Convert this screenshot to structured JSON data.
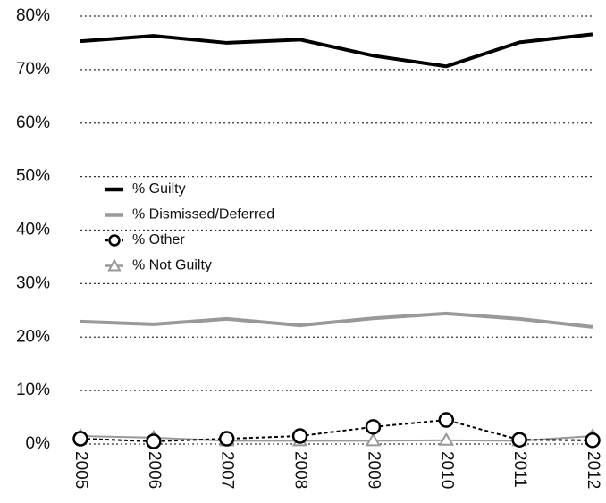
{
  "chart_data": {
    "type": "line",
    "categories": [
      "2005",
      "2006",
      "2007",
      "2008",
      "2009",
      "2010",
      "2011",
      "2012"
    ],
    "series": [
      {
        "name": "% Guilty",
        "color": "#000000",
        "linewidth": 4,
        "linestyle": "solid",
        "marker": "none",
        "values": [
          75.3,
          76.3,
          75.0,
          75.6,
          72.6,
          70.6,
          75.1,
          76.6
        ]
      },
      {
        "name": "% Dismissed/Deferred",
        "color": "#999999",
        "linewidth": 4,
        "linestyle": "solid",
        "marker": "none",
        "values": [
          22.9,
          22.4,
          23.4,
          22.2,
          23.5,
          24.4,
          23.4,
          21.9
        ]
      },
      {
        "name": "% Other",
        "color": "#000000",
        "linewidth": 2,
        "linestyle": "dashed",
        "marker": "circle",
        "values": [
          1.0,
          0.5,
          1.0,
          1.5,
          3.2,
          4.5,
          0.8,
          0.7
        ]
      },
      {
        "name": "% Not Guilty",
        "color": "#999999",
        "linewidth": 2,
        "linestyle": "solid",
        "marker": "triangle",
        "values": [
          1.5,
          1.2,
          0.6,
          0.6,
          0.6,
          0.7,
          0.6,
          1.5
        ]
      }
    ],
    "ylim": [
      0,
      80
    ],
    "yticks": [
      {
        "value": 0,
        "label": "0%"
      },
      {
        "value": 10,
        "label": "10%"
      },
      {
        "value": 20,
        "label": "20%"
      },
      {
        "value": 30,
        "label": "30%"
      },
      {
        "value": 40,
        "label": "40%"
      },
      {
        "value": 50,
        "label": "50%"
      },
      {
        "value": 60,
        "label": "60%"
      },
      {
        "value": 70,
        "label": "70%"
      },
      {
        "value": 80,
        "label": "80%"
      }
    ],
    "grid": true,
    "legend": "center left"
  }
}
